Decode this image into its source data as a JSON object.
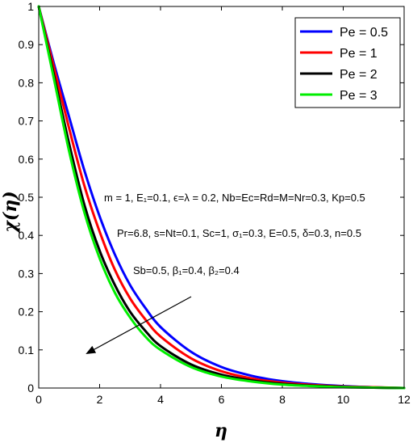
{
  "chart_data": {
    "type": "line",
    "title": "",
    "xlabel": "η",
    "ylabel": "χ(η)",
    "xlim": [
      0,
      12
    ],
    "ylim": [
      0,
      1
    ],
    "xticks": [
      "0",
      "2",
      "4",
      "6",
      "8",
      "10",
      "12"
    ],
    "yticks": [
      "0",
      "0.1",
      "0.2",
      "0.3",
      "0.4",
      "0.5",
      "0.6",
      "0.7",
      "0.8",
      "0.9",
      "1"
    ],
    "grid": false,
    "legend_position": "top-right",
    "x": [
      0,
      0.5,
      1,
      1.5,
      2,
      2.5,
      3,
      3.5,
      4,
      5,
      6,
      7,
      8,
      9,
      10,
      11,
      12
    ],
    "series": [
      {
        "name": "Pe = 0.5",
        "color": "#0000ff",
        "values": [
          1.0,
          0.85,
          0.71,
          0.57,
          0.45,
          0.35,
          0.27,
          0.21,
          0.16,
          0.095,
          0.055,
          0.032,
          0.018,
          0.01,
          0.005,
          0.002,
          0.0
        ]
      },
      {
        "name": "Pe = 1",
        "color": "#ff0000",
        "values": [
          1.0,
          0.84,
          0.68,
          0.53,
          0.41,
          0.31,
          0.235,
          0.18,
          0.135,
          0.078,
          0.044,
          0.025,
          0.014,
          0.008,
          0.004,
          0.002,
          0.0
        ]
      },
      {
        "name": "Pe = 2",
        "color": "#000000",
        "values": [
          1.0,
          0.82,
          0.64,
          0.48,
          0.36,
          0.27,
          0.2,
          0.15,
          0.11,
          0.062,
          0.035,
          0.02,
          0.011,
          0.006,
          0.003,
          0.001,
          0.0
        ]
      },
      {
        "name": "Pe = 3",
        "color": "#00ee00",
        "values": [
          1.0,
          0.81,
          0.62,
          0.46,
          0.34,
          0.25,
          0.185,
          0.135,
          0.1,
          0.055,
          0.03,
          0.017,
          0.009,
          0.005,
          0.002,
          0.001,
          0.0
        ]
      }
    ],
    "annotations": [
      "m = 1, E₁=0.1, ϵ=λ = 0.2, Nb=Ec=Rd=M=Nr=0.3, Kp=0.5",
      "Pr=6.8, s=Nt=0.1, Sc=1, σ₁=0.3, E=0.5, δ=0.3, n=0.5",
      "Sb=0.5, β₁=0.4, β₂=0.4"
    ]
  }
}
